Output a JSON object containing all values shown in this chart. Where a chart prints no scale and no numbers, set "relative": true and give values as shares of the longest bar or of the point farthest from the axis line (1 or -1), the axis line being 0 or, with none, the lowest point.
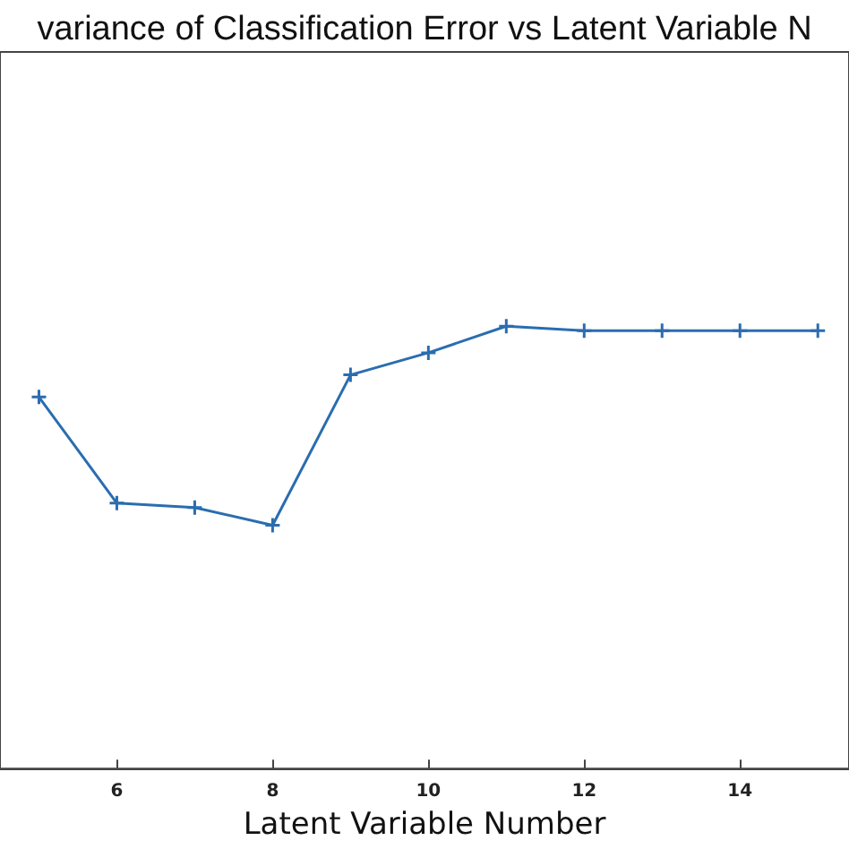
{
  "chart_data": {
    "type": "line",
    "title": "variance of Classification Error vs Latent Variable N",
    "xlabel": "Latent Variable Number",
    "x": [
      5,
      6,
      7,
      8,
      9,
      10,
      11,
      12,
      13,
      14,
      15
    ],
    "series": [
      {
        "color": "#2a6db0",
        "values": [
          0.84,
          0.6,
          0.59,
          0.55,
          0.89,
          0.94,
          1,
          0.99,
          0.99,
          0.99,
          0.99
        ]
      }
    ],
    "relative": true,
    "xlim": [
      4.5,
      15.4
    ],
    "xticks": [
      6,
      8,
      10,
      12,
      14
    ],
    "marker": "cross",
    "line_style": "solid",
    "grid": false
  }
}
